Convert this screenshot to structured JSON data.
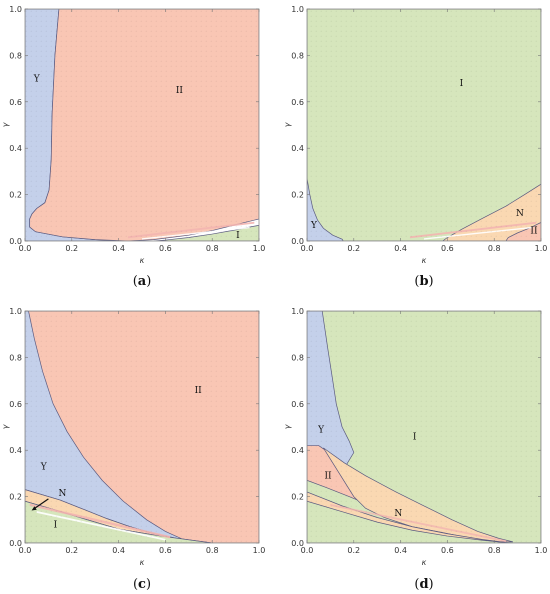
{
  "colors": {
    "I": "#d6e6bc",
    "II": "#f9c6b4",
    "Y": "#c4d0ea",
    "N": "#fad8b2",
    "small_red": "#f3b5b0",
    "small_white": "#ffffff"
  },
  "panels": [
    {
      "caption_open": "(",
      "caption_letter": "a",
      "caption_close": ")",
      "xlabel": "κ",
      "ylabel": "γ",
      "xticks": [
        "0.0",
        "0.2",
        "0.4",
        "0.6",
        "0.8",
        "1.0"
      ],
      "yticks": [
        "0.0",
        "0.2",
        "0.4",
        "0.6",
        "0.8",
        "1.0"
      ],
      "region_labels": [
        {
          "text": "Y",
          "x": 0.05,
          "y": 0.7
        },
        {
          "text": "II",
          "x": 0.66,
          "y": 0.65
        },
        {
          "text": "I",
          "x": 0.91,
          "y": 0.025
        }
      ]
    },
    {
      "caption_open": "(",
      "caption_letter": "b",
      "caption_close": ")",
      "xlabel": "κ",
      "ylabel": "γ",
      "xticks": [
        "0.0",
        "0.2",
        "0.4",
        "0.6",
        "0.8",
        "1.0"
      ],
      "yticks": [
        "0.0",
        "0.2",
        "0.4",
        "0.6",
        "0.8",
        "1.0"
      ],
      "region_labels": [
        {
          "text": "I",
          "x": 0.66,
          "y": 0.68
        },
        {
          "text": "Y",
          "x": 0.03,
          "y": 0.07
        },
        {
          "text": "N",
          "x": 0.91,
          "y": 0.12
        },
        {
          "text": "II",
          "x": 0.97,
          "y": 0.045
        }
      ]
    },
    {
      "caption_open": "(",
      "caption_letter": "c",
      "caption_close": ")",
      "xlabel": "κ",
      "ylabel": "γ",
      "xticks": [
        "0.0",
        "0.2",
        "0.4",
        "0.6",
        "0.8",
        "1.0"
      ],
      "yticks": [
        "0.0",
        "0.2",
        "0.4",
        "0.6",
        "0.8",
        "1.0"
      ],
      "region_labels": [
        {
          "text": "II",
          "x": 0.74,
          "y": 0.66
        },
        {
          "text": "Y",
          "x": 0.08,
          "y": 0.33
        },
        {
          "text": "N",
          "x": 0.16,
          "y": 0.215
        },
        {
          "text": "I",
          "x": 0.13,
          "y": 0.08
        }
      ]
    },
    {
      "caption_open": "(",
      "caption_letter": "d",
      "caption_close": ")",
      "xlabel": "κ",
      "ylabel": "γ",
      "xticks": [
        "0.0",
        "0.2",
        "0.4",
        "0.6",
        "0.8",
        "1.0"
      ],
      "yticks": [
        "0.0",
        "0.2",
        "0.4",
        "0.6",
        "0.8",
        "1.0"
      ],
      "region_labels": [
        {
          "text": "Y",
          "x": 0.06,
          "y": 0.49
        },
        {
          "text": "I",
          "x": 0.46,
          "y": 0.46
        },
        {
          "text": "II",
          "x": 0.09,
          "y": 0.29
        },
        {
          "text": "N",
          "x": 0.39,
          "y": 0.13
        }
      ]
    }
  ],
  "chart_data": [
    {
      "type": "heatmap",
      "panel": "a",
      "xlabel": "κ",
      "ylabel": "γ",
      "xlim": [
        0,
        1
      ],
      "ylim": [
        0,
        1
      ],
      "regions": {
        "Y": [
          [
            0,
            1
          ],
          [
            0.145,
            1
          ],
          [
            0.128,
            0.8
          ],
          [
            0.116,
            0.55
          ],
          [
            0.112,
            0.35
          ],
          [
            0.103,
            0.22
          ],
          [
            0.085,
            0.165
          ],
          [
            0.05,
            0.14
          ],
          [
            0.03,
            0.117
          ],
          [
            0.02,
            0.095
          ],
          [
            0.02,
            0.06
          ],
          [
            0.045,
            0.04
          ],
          [
            0.16,
            0.018
          ],
          [
            0.3,
            0.006
          ],
          [
            0.44,
            0
          ],
          [
            0,
            0
          ]
        ],
        "II": [
          [
            0.145,
            1
          ],
          [
            1,
            1
          ],
          [
            1,
            0.095
          ],
          [
            0.9,
            0.07
          ],
          [
            0.8,
            0.045
          ],
          [
            0.7,
            0.025
          ],
          [
            0.55,
            0.006
          ],
          [
            0.44,
            0
          ],
          [
            0.3,
            0.006
          ],
          [
            0.16,
            0.018
          ],
          [
            0.045,
            0.04
          ],
          [
            0.02,
            0.06
          ],
          [
            0.02,
            0.095
          ],
          [
            0.03,
            0.117
          ],
          [
            0.05,
            0.14
          ],
          [
            0.085,
            0.165
          ],
          [
            0.103,
            0.22
          ],
          [
            0.112,
            0.35
          ],
          [
            0.116,
            0.55
          ],
          [
            0.128,
            0.8
          ]
        ],
        "I": [
          [
            0.55,
            0
          ],
          [
            1,
            0
          ],
          [
            1,
            0.068
          ],
          [
            0.9,
            0.048
          ],
          [
            0.8,
            0.03
          ],
          [
            0.7,
            0.015
          ],
          [
            0.6,
            0.004
          ]
        ]
      },
      "labels": [
        "Y",
        "II",
        "I"
      ]
    },
    {
      "type": "heatmap",
      "panel": "b",
      "xlabel": "κ",
      "ylabel": "γ",
      "xlim": [
        0,
        1
      ],
      "ylim": [
        0,
        1
      ],
      "regions": {
        "I": [
          [
            0,
            0
          ],
          [
            1,
            0
          ],
          [
            1,
            1
          ],
          [
            0,
            1
          ]
        ],
        "Y": [
          [
            0,
            0.27
          ],
          [
            0.012,
            0.2
          ],
          [
            0.025,
            0.14
          ],
          [
            0.045,
            0.09
          ],
          [
            0.07,
            0.055
          ],
          [
            0.11,
            0.025
          ],
          [
            0.15,
            0.008
          ],
          [
            0.155,
            0
          ],
          [
            0,
            0
          ]
        ],
        "N": [
          [
            0.58,
            0
          ],
          [
            1,
            0
          ],
          [
            1,
            0.245
          ],
          [
            0.93,
            0.2
          ],
          [
            0.85,
            0.15
          ],
          [
            0.75,
            0.098
          ],
          [
            0.66,
            0.05
          ],
          [
            0.6,
            0.015
          ]
        ],
        "II": [
          [
            0.85,
            0
          ],
          [
            1,
            0
          ],
          [
            1,
            0.08
          ],
          [
            0.95,
            0.055
          ],
          [
            0.9,
            0.035
          ],
          [
            0.86,
            0.015
          ]
        ]
      },
      "labels": [
        "I",
        "Y",
        "N",
        "II"
      ]
    },
    {
      "type": "heatmap",
      "panel": "c",
      "xlabel": "κ",
      "ylabel": "γ",
      "xlim": [
        0,
        1
      ],
      "ylim": [
        0,
        1
      ],
      "regions": {
        "II": [
          [
            0,
            1
          ],
          [
            1,
            1
          ],
          [
            1,
            0
          ],
          [
            0.8,
            0
          ],
          [
            0.75,
            0.005
          ],
          [
            0.65,
            0.02
          ],
          [
            0.55,
            0.04
          ],
          [
            0.45,
            0.07
          ],
          [
            0.35,
            0.105
          ],
          [
            0.25,
            0.145
          ],
          [
            0.15,
            0.185
          ],
          [
            0,
            0.23
          ]
        ],
        "Y": [
          [
            0.015,
            1
          ],
          [
            0.04,
            0.88
          ],
          [
            0.075,
            0.74
          ],
          [
            0.12,
            0.6
          ],
          [
            0.18,
            0.48
          ],
          [
            0.25,
            0.37
          ],
          [
            0.33,
            0.27
          ],
          [
            0.42,
            0.18
          ],
          [
            0.52,
            0.1
          ],
          [
            0.6,
            0.05
          ],
          [
            0.67,
            0.018
          ],
          [
            0.8,
            0
          ],
          [
            0.75,
            0.005
          ],
          [
            0.65,
            0.02
          ],
          [
            0.55,
            0.04
          ],
          [
            0.45,
            0.07
          ],
          [
            0.35,
            0.105
          ],
          [
            0.25,
            0.145
          ],
          [
            0.15,
            0.185
          ],
          [
            0,
            0.23
          ],
          [
            0,
            1
          ]
        ],
        "N": [
          [
            0,
            0.23
          ],
          [
            0.15,
            0.185
          ],
          [
            0.25,
            0.145
          ],
          [
            0.35,
            0.105
          ],
          [
            0.45,
            0.07
          ],
          [
            0.55,
            0.04
          ],
          [
            0.58,
            0.03
          ],
          [
            0.4,
            0.06
          ],
          [
            0.25,
            0.105
          ],
          [
            0.12,
            0.145
          ],
          [
            0,
            0.18
          ]
        ],
        "I": [
          [
            0,
            0
          ],
          [
            0.8,
            0
          ],
          [
            0.58,
            0.03
          ],
          [
            0.4,
            0.06
          ],
          [
            0.25,
            0.105
          ],
          [
            0.12,
            0.145
          ],
          [
            0,
            0.18
          ]
        ]
      },
      "labels": [
        "II",
        "Y",
        "N",
        "I"
      ]
    },
    {
      "type": "heatmap",
      "panel": "d",
      "xlabel": "κ",
      "ylabel": "γ",
      "xlim": [
        0,
        1
      ],
      "ylim": [
        0,
        1
      ],
      "regions": {
        "I": [
          [
            0,
            0
          ],
          [
            1,
            0
          ],
          [
            1,
            1
          ],
          [
            0,
            1
          ]
        ],
        "Y": [
          [
            0.035,
            1
          ],
          [
            0.065,
            1
          ],
          [
            0.09,
            0.83
          ],
          [
            0.11,
            0.7
          ],
          [
            0.125,
            0.6
          ],
          [
            0.15,
            0.5
          ],
          [
            0.18,
            0.44
          ],
          [
            0.2,
            0.39
          ],
          [
            0.17,
            0.34
          ],
          [
            0.12,
            0.3
          ],
          [
            0,
            0.32
          ],
          [
            0,
            1
          ]
        ],
        "II": [
          [
            0,
            0.42
          ],
          [
            0.05,
            0.42
          ],
          [
            0.15,
            0.35
          ],
          [
            0.2,
            0.28
          ],
          [
            0.24,
            0.21
          ],
          [
            0.28,
            0.17
          ],
          [
            0.3,
            0.15
          ],
          [
            0.18,
            0.2
          ],
          [
            0.08,
            0.24
          ],
          [
            0,
            0.27
          ]
        ],
        "N": [
          [
            0.07,
            0.41
          ],
          [
            0.16,
            0.345
          ],
          [
            0.25,
            0.29
          ],
          [
            0.38,
            0.22
          ],
          [
            0.5,
            0.16
          ],
          [
            0.62,
            0.1
          ],
          [
            0.73,
            0.05
          ],
          [
            0.82,
            0.02
          ],
          [
            0.88,
            0.005
          ],
          [
            0.82,
            0.005
          ],
          [
            0.7,
            0.02
          ],
          [
            0.58,
            0.045
          ],
          [
            0.45,
            0.07
          ],
          [
            0.33,
            0.11
          ],
          [
            0.25,
            0.15
          ],
          [
            0.2,
            0.2
          ]
        ],
        "NI": [
          [
            0,
            0.22
          ],
          [
            0.15,
            0.16
          ],
          [
            0.3,
            0.11
          ],
          [
            0.45,
            0.07
          ],
          [
            0.6,
            0.04
          ],
          [
            0.75,
            0.015
          ],
          [
            0.87,
            0
          ],
          [
            0.75,
            0.012
          ],
          [
            0.6,
            0.03
          ],
          [
            0.45,
            0.055
          ],
          [
            0.3,
            0.09
          ],
          [
            0.15,
            0.135
          ],
          [
            0,
            0.18
          ]
        ]
      },
      "labels": [
        "Y",
        "I",
        "II",
        "N"
      ]
    }
  ]
}
